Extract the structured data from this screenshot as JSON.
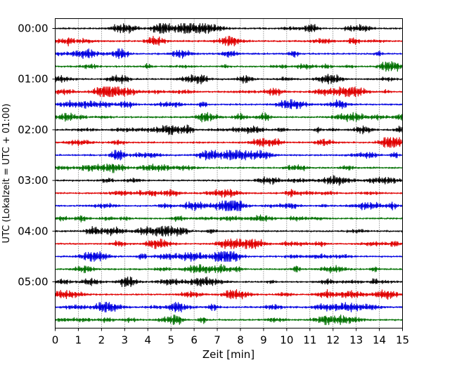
{
  "chart_data": {
    "type": "line",
    "title": "",
    "xlabel": "Zeit  [min]",
    "ylabel": "UTC (Lokalzeit = UTC + 01:00)",
    "xlim": [
      0,
      15
    ],
    "x_ticks": [
      "0",
      "1",
      "2",
      "3",
      "4",
      "5",
      "6",
      "7",
      "8",
      "9",
      "10",
      "11",
      "12",
      "13",
      "14",
      "15"
    ],
    "y_ticks": [
      "00:00",
      "01:00",
      "02:00",
      "03:00",
      "04:00",
      "05:00"
    ],
    "grid": "vertical dotted at each minute",
    "legend": "none",
    "trace_colors": [
      "#000000",
      "#e00000",
      "#0000e0",
      "#007000"
    ],
    "traces_per_hour": 4,
    "trace_count": 24,
    "trace_minutes": 15,
    "description_series": "24 consecutive 15-minute seismogram traces (helicorder), 00:00–06:00 UTC, colors cycle black/red/blue/green"
  }
}
